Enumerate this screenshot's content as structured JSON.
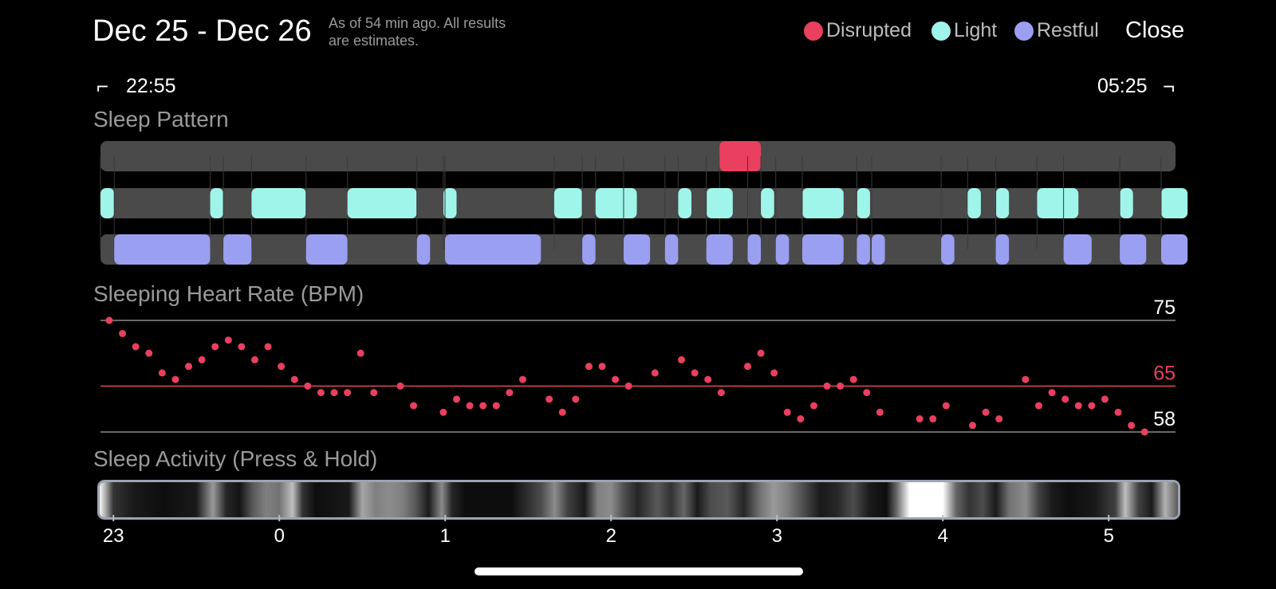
{
  "header": {
    "title": "Dec 25 - Dec 26",
    "note_line1": "As of 54 min ago. All results",
    "note_line2": "are estimates.",
    "legend": [
      {
        "label": "Disrupted",
        "color": "#e8405e"
      },
      {
        "label": "Light",
        "color": "#9ff5ea"
      },
      {
        "label": "Restful",
        "color": "#9a9ff1"
      }
    ],
    "close_label": "Close"
  },
  "range": {
    "start": "22:55",
    "end": "05:25"
  },
  "sections": {
    "sleep_pattern": "Sleep Pattern",
    "heart_rate": "Sleeping Heart Rate (BPM)",
    "activity": "Sleep Activity (Press & Hold)"
  },
  "colors": {
    "disrupted": "#e8405e",
    "light": "#9ff5ea",
    "restful": "#9a9ff1",
    "track": "#4a4a4a",
    "avg_line": "#e8405e",
    "grid": "#8a8a8a"
  },
  "chart_data": [
    {
      "type": "timeline",
      "title": "Sleep Pattern",
      "x_unit": "hours after 23:00",
      "xlim": [
        -0.083,
        6.417
      ],
      "rows": [
        {
          "name": "Disrupted",
          "segments": [
            [
              3.66,
              3.91
            ]
          ]
        },
        {
          "name": "Light",
          "segments": [
            [
              -0.083,
              0.0
            ],
            [
              0.58,
              0.66
            ],
            [
              0.83,
              1.16
            ],
            [
              1.41,
              1.83
            ],
            [
              1.99,
              2.07
            ],
            [
              2.66,
              2.83
            ],
            [
              2.91,
              3.16
            ],
            [
              3.41,
              3.49
            ],
            [
              3.58,
              3.74
            ],
            [
              3.91,
              3.99
            ],
            [
              4.16,
              4.41
            ],
            [
              4.49,
              4.57
            ],
            [
              5.16,
              5.24
            ],
            [
              5.33,
              5.41
            ],
            [
              5.58,
              5.83
            ],
            [
              6.08,
              6.16
            ],
            [
              6.33,
              6.49
            ]
          ]
        },
        {
          "name": "Restful",
          "segments": [
            [
              0.0,
              0.58
            ],
            [
              0.66,
              0.83
            ],
            [
              1.16,
              1.41
            ],
            [
              1.83,
              1.91
            ],
            [
              2.0,
              2.58
            ],
            [
              2.83,
              2.91
            ],
            [
              3.08,
              3.24
            ],
            [
              3.33,
              3.41
            ],
            [
              3.58,
              3.74
            ],
            [
              3.83,
              3.91
            ],
            [
              4.0,
              4.08
            ],
            [
              4.16,
              4.41
            ],
            [
              4.49,
              4.57
            ],
            [
              4.58,
              4.66
            ],
            [
              5.0,
              5.08
            ],
            [
              5.33,
              5.41
            ],
            [
              5.74,
              5.91
            ],
            [
              6.08,
              6.24
            ],
            [
              6.33,
              6.49
            ]
          ]
        }
      ]
    },
    {
      "type": "scatter",
      "title": "Sleeping Heart Rate (BPM)",
      "ylim": [
        58,
        75
      ],
      "yticks": [
        75,
        65,
        58
      ],
      "average": 65,
      "x_unit": "hours after 23:00",
      "xlim": [
        -0.083,
        6.417
      ],
      "points": [
        [
          -0.03,
          75
        ],
        [
          0.05,
          73
        ],
        [
          0.13,
          71
        ],
        [
          0.21,
          70
        ],
        [
          0.29,
          67
        ],
        [
          0.37,
          66
        ],
        [
          0.45,
          68
        ],
        [
          0.53,
          69
        ],
        [
          0.61,
          71
        ],
        [
          0.69,
          72
        ],
        [
          0.77,
          71
        ],
        [
          0.85,
          69
        ],
        [
          0.93,
          71
        ],
        [
          1.01,
          68
        ],
        [
          1.09,
          66
        ],
        [
          1.17,
          65
        ],
        [
          1.25,
          64
        ],
        [
          1.33,
          64
        ],
        [
          1.41,
          64
        ],
        [
          1.49,
          70
        ],
        [
          1.57,
          64
        ],
        [
          1.73,
          65
        ],
        [
          1.81,
          62
        ],
        [
          1.99,
          61
        ],
        [
          2.07,
          63
        ],
        [
          2.15,
          62
        ],
        [
          2.23,
          62
        ],
        [
          2.31,
          62
        ],
        [
          2.39,
          64
        ],
        [
          2.47,
          66
        ],
        [
          2.63,
          63
        ],
        [
          2.71,
          61
        ],
        [
          2.79,
          63
        ],
        [
          2.87,
          68
        ],
        [
          2.95,
          68
        ],
        [
          3.03,
          66
        ],
        [
          3.11,
          65
        ],
        [
          3.27,
          67
        ],
        [
          3.43,
          69
        ],
        [
          3.51,
          67
        ],
        [
          3.59,
          66
        ],
        [
          3.67,
          64
        ],
        [
          3.83,
          68
        ],
        [
          3.91,
          70
        ],
        [
          3.99,
          67
        ],
        [
          4.07,
          61
        ],
        [
          4.15,
          60
        ],
        [
          4.23,
          62
        ],
        [
          4.31,
          65
        ],
        [
          4.39,
          65
        ],
        [
          4.47,
          66
        ],
        [
          4.55,
          64
        ],
        [
          4.63,
          61
        ],
        [
          4.87,
          60
        ],
        [
          4.95,
          60
        ],
        [
          5.03,
          62
        ],
        [
          5.19,
          59
        ],
        [
          5.27,
          61
        ],
        [
          5.35,
          60
        ],
        [
          5.51,
          66
        ],
        [
          5.59,
          62
        ],
        [
          5.67,
          64
        ],
        [
          5.75,
          63
        ],
        [
          5.83,
          62
        ],
        [
          5.91,
          62
        ],
        [
          5.99,
          63
        ],
        [
          6.07,
          61
        ],
        [
          6.15,
          59
        ],
        [
          6.23,
          58
        ]
      ]
    },
    {
      "type": "heatmap",
      "title": "Sleep Activity (Press & Hold)",
      "x_unit": "hours after 23:00",
      "xlim": [
        -0.083,
        6.417
      ],
      "xticks": [
        {
          "value": 0,
          "label": "23"
        },
        {
          "value": 1,
          "label": "0"
        },
        {
          "value": 2,
          "label": "1"
        },
        {
          "value": 3,
          "label": "2"
        },
        {
          "value": 4,
          "label": "3"
        },
        {
          "value": 5,
          "label": "4"
        },
        {
          "value": 6,
          "label": "5"
        }
      ],
      "intensity": [
        [
          -0.08,
          0.95
        ],
        [
          -0.04,
          0.6
        ],
        [
          0.0,
          0.2
        ],
        [
          0.12,
          0.1
        ],
        [
          0.3,
          0.05
        ],
        [
          0.5,
          0.1
        ],
        [
          0.6,
          0.6
        ],
        [
          0.68,
          0.15
        ],
        [
          0.76,
          0.08
        ],
        [
          0.84,
          0.35
        ],
        [
          0.92,
          0.5
        ],
        [
          1.0,
          0.45
        ],
        [
          1.08,
          0.75
        ],
        [
          1.14,
          0.2
        ],
        [
          1.22,
          0.05
        ],
        [
          1.42,
          0.1
        ],
        [
          1.5,
          0.65
        ],
        [
          1.58,
          0.5
        ],
        [
          1.66,
          0.55
        ],
        [
          1.74,
          0.5
        ],
        [
          1.82,
          0.35
        ],
        [
          1.9,
          0.1
        ],
        [
          1.98,
          0.55
        ],
        [
          2.04,
          0.15
        ],
        [
          2.12,
          0.05
        ],
        [
          2.4,
          0.05
        ],
        [
          2.58,
          0.3
        ],
        [
          2.66,
          0.55
        ],
        [
          2.74,
          0.25
        ],
        [
          2.84,
          0.1
        ],
        [
          2.92,
          0.5
        ],
        [
          3.0,
          0.55
        ],
        [
          3.08,
          0.3
        ],
        [
          3.16,
          0.15
        ],
        [
          3.28,
          0.35
        ],
        [
          3.36,
          0.2
        ],
        [
          3.44,
          0.4
        ],
        [
          3.52,
          0.1
        ],
        [
          3.6,
          0.3
        ],
        [
          3.7,
          0.35
        ],
        [
          3.8,
          0.15
        ],
        [
          3.9,
          0.45
        ],
        [
          3.98,
          0.6
        ],
        [
          4.06,
          0.5
        ],
        [
          4.16,
          0.3
        ],
        [
          4.26,
          0.1
        ],
        [
          4.36,
          0.15
        ],
        [
          4.46,
          0.3
        ],
        [
          4.56,
          0.1
        ],
        [
          4.66,
          0.05
        ],
        [
          4.72,
          0.4
        ],
        [
          4.8,
          1.0
        ],
        [
          5.0,
          1.0
        ],
        [
          5.08,
          0.4
        ],
        [
          5.16,
          0.2
        ],
        [
          5.24,
          0.3
        ],
        [
          5.32,
          0.1
        ],
        [
          5.4,
          0.45
        ],
        [
          5.5,
          0.55
        ],
        [
          5.58,
          0.25
        ],
        [
          5.66,
          0.1
        ],
        [
          5.76,
          0.05
        ],
        [
          5.92,
          0.1
        ],
        [
          6.04,
          0.25
        ],
        [
          6.1,
          0.75
        ],
        [
          6.18,
          0.25
        ],
        [
          6.26,
          0.1
        ],
        [
          6.34,
          0.7
        ],
        [
          6.42,
          0.35
        ]
      ]
    }
  ]
}
